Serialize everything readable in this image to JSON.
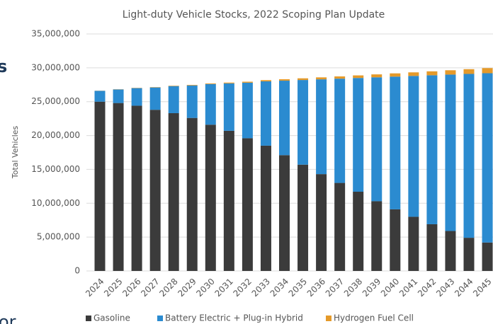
{
  "chart_data": {
    "type": "stacked_bar",
    "title": "Light-duty Vehicle Stocks, 2022 Scoping Plan Update",
    "y_label": "Total Vehicles",
    "categories": [
      "2024",
      "2025",
      "2026",
      "2027",
      "2028",
      "2029",
      "2030",
      "2031",
      "2032",
      "2033",
      "2034",
      "2035",
      "2036",
      "2037",
      "2038",
      "2039",
      "2040",
      "2041",
      "2042",
      "2043",
      "2044",
      "2045"
    ],
    "series": [
      {
        "name": "Gasoline",
        "color": "#3b3b3b",
        "values": [
          25000000,
          24800000,
          24400000,
          23800000,
          23300000,
          22600000,
          21600000,
          20700000,
          19600000,
          18500000,
          17100000,
          15700000,
          14300000,
          13000000,
          11700000,
          10300000,
          9100000,
          8000000,
          6900000,
          5900000,
          4900000,
          4200000
        ]
      },
      {
        "name": "Battery Electric + Plug-in Hybrid",
        "color": "#2b8bd0",
        "values": [
          1600000,
          2000000,
          2600000,
          3300000,
          4000000,
          4800000,
          6000000,
          7000000,
          8200000,
          9500000,
          11000000,
          12500000,
          14000000,
          15400000,
          16800000,
          18300000,
          19600000,
          20800000,
          22000000,
          23100000,
          24200000,
          25000000
        ]
      },
      {
        "name": "Hydrogen Fuel Cell",
        "color": "#e59a2a",
        "values": [
          20000,
          30000,
          40000,
          50000,
          60000,
          80000,
          100000,
          120000,
          150000,
          180000,
          210000,
          250000,
          290000,
          330000,
          380000,
          430000,
          480000,
          530000,
          580000,
          640000,
          700000,
          760000
        ]
      }
    ],
    "ylim": [
      0,
      35000000
    ],
    "yticks": [
      0,
      {
        "value": 5000000,
        "label": "5,000,000"
      },
      {
        "value": 10000000,
        "label": "10,000,000"
      },
      {
        "value": 15000000,
        "label": "15,000,000"
      },
      {
        "value": 20000000,
        "label": "20,000,000"
      },
      {
        "value": 25000000,
        "label": "25,000,000"
      },
      {
        "value": 30000000,
        "label": "30,000,000"
      },
      {
        "value": 35000000,
        "label": "35,000,000"
      }
    ],
    "grid": true,
    "legend": "bottom"
  },
  "page_fragments": [
    "s",
    "or"
  ]
}
